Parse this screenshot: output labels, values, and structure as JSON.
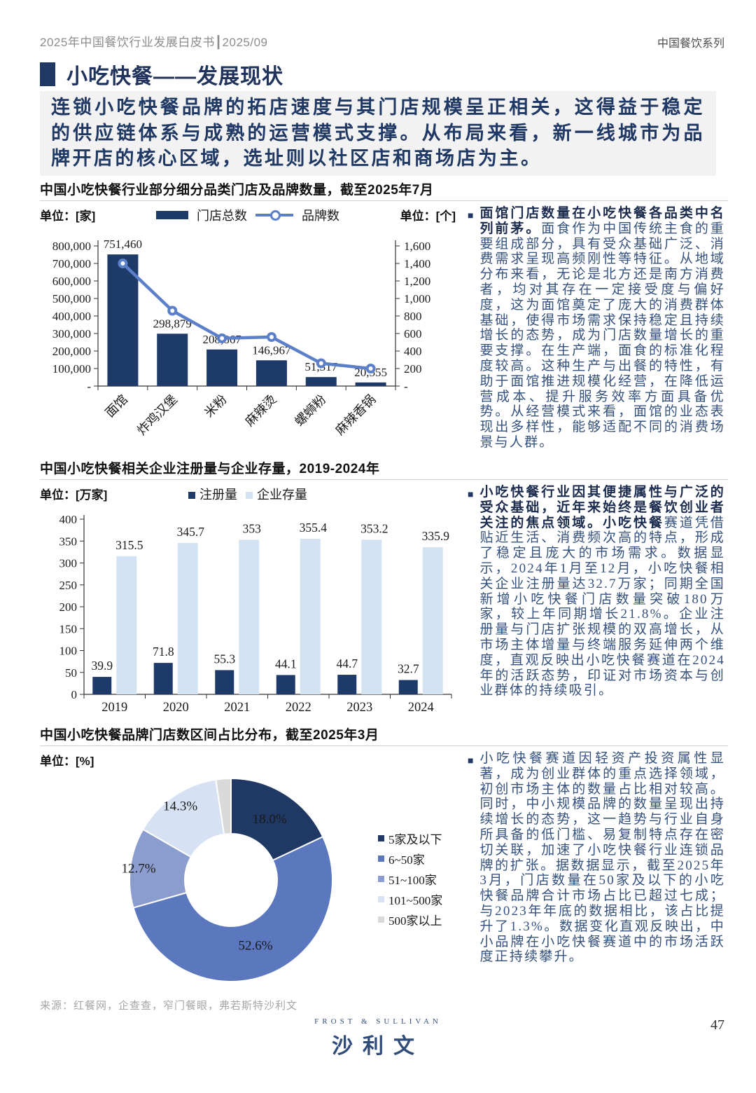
{
  "page": {
    "header_left": "2025年中国餐饮行业发展白皮书┃2025/09",
    "header_right": "中国餐饮系列",
    "title": "小吃快餐——发展现状",
    "bullet": "■",
    "highlight": "连锁小吃快餐品牌的拓店速度与其门店规模呈正相关，这得益于稳定的供应链体系与成熟的运营模式支撑。从布局来看，新一线城市为品牌开店的核心区域，选址则以社区店和商场店为主。",
    "source": "来源：红餐网，企查查，窄门餐眼，弗若斯特沙利文",
    "logo_top": "FROST & SULLIVAN",
    "logo_main": "沙利文",
    "page_number": "47"
  },
  "colors": {
    "navy": "#1F3864",
    "bar_dark": "#1E3A68",
    "line_blue": "#5B7FC9",
    "bar_light": "#D3E3F4",
    "donut": [
      "#1F3864",
      "#5B77BE",
      "#8B9CCE",
      "#D6E2F3",
      "#D9D9D9"
    ],
    "highlight_bg": "#F2F2F2",
    "body_text": "#35517E",
    "axis_text": "#1A1A1A"
  },
  "chart_data": [
    {
      "type": "bar",
      "subtype": "bar+line-dual-axis",
      "title": "中国小吃快餐行业部分细分品类门店及品牌数量，截至2025年7月",
      "unit_left": "单位：[家]",
      "unit_right": "单位：[个]",
      "categories": [
        "面馆",
        "炸鸡汉堡",
        "米粉",
        "麻辣烫",
        "螺蛳粉",
        "麻辣香锅"
      ],
      "series": [
        {
          "name": "门店总数",
          "type": "bar",
          "axis": "left",
          "values": [
            751460,
            298879,
            208867,
            146967,
            51317,
            20555
          ]
        },
        {
          "name": "品牌数",
          "type": "line",
          "axis": "right",
          "values": [
            1400,
            860,
            545,
            560,
            260,
            200
          ]
        }
      ],
      "left_axis": {
        "min": 0,
        "max": 800000,
        "step": 100000,
        "zero_label": "-"
      },
      "right_axis": {
        "min": 0,
        "max": 1600,
        "step": 200,
        "zero_label": "-"
      },
      "legend_position": "top-center",
      "grid": false
    },
    {
      "type": "bar",
      "subtype": "grouped-bars",
      "title": "中国小吃快餐相关企业注册量与企业存量，2019-2024年",
      "unit": "单位：[万家]",
      "categories": [
        "2019",
        "2020",
        "2021",
        "2022",
        "2023",
        "2024"
      ],
      "series": [
        {
          "name": "注册量",
          "values": [
            39.9,
            71.8,
            55.3,
            44.1,
            44.7,
            32.7
          ]
        },
        {
          "name": "企业存量",
          "values": [
            315.5,
            345.7,
            353,
            355.4,
            353.2,
            335.9
          ]
        }
      ],
      "y_axis": {
        "min": 0,
        "max": 400,
        "step": 50
      },
      "legend_position": "top-center",
      "grid": false
    },
    {
      "type": "pie",
      "subtype": "donut",
      "title": "中国小吃快餐品牌门店数区间占比分布，截至2025年3月",
      "unit": "单位：[%]",
      "labels": [
        "5家及以下",
        "6~50家",
        "51~100家",
        "101~500家",
        "500家以上"
      ],
      "values": [
        18.0,
        52.6,
        12.7,
        14.3,
        2.4
      ],
      "legend_position": "right",
      "start_angle": "top",
      "direction": "clockwise"
    }
  ],
  "blocks": [
    {
      "bold": "面馆门店数量在小吃快餐各品类中名列前茅。",
      "body": "面食作为中国传统主食的重要组成部分，具有受众基础广泛、消费需求呈现高频刚性等特征。从地域分布来看，无论是北方还是南方消费者，均对其存在一定接受度与偏好度，这为面馆奠定了庞大的消费群体基础，使得市场需求保持稳定且持续增长的态势，成为门店数量增长的重要支撑。在生产端，面食的标准化程度较高。这种生产与出餐的特性，有助于面馆推进规模化经营，在降低运营成本、提升服务效率方面具备优势。从经营模式来看，面馆的业态表现出多样性，能够适配不同的消费场景与人群。"
    },
    {
      "bold": "小吃快餐行业因其便捷属性与广泛的受众基础，近年来始终是餐饮创业者关注的焦点领域。小吃快餐",
      "body": "赛道凭借贴近生活、消费频次高的特点，形成了稳定且庞大的市场需求。数据显示，2024年1月至12月，小吃快餐相关企业注册量达32.7万家；同期全国新增小吃快餐门店数量突破180万家，较上年同期增长21.8%。企业注册量与门店扩张规模的双高增长，从市场主体增量与终端服务延伸两个维度，直观反映出小吃快餐赛道在2024年的活跃态势，印证对市场资本与创业群体的持续吸引。"
    },
    {
      "bold": "",
      "body": "小吃快餐赛道因轻资产投资属性显著，成为创业群体的重点选择领域，初创市场主体的数量占比相对较高。同时，中小规模品牌的数量呈现出持续增长的态势，这一趋势与行业自身所具备的低门槛、易复制特点存在密切关联，加速了小吃快餐行业连锁品牌的扩张。据数据显示，截至2025年3月，门店数量在50家及以下的小吃快餐品牌合计市场占比已超过七成；与2023年年底的数据相比，该占比提升了1.3%。数据变化直观反映出，中小品牌在小吃快餐赛道中的市场活跃度正持续攀升。"
    }
  ]
}
